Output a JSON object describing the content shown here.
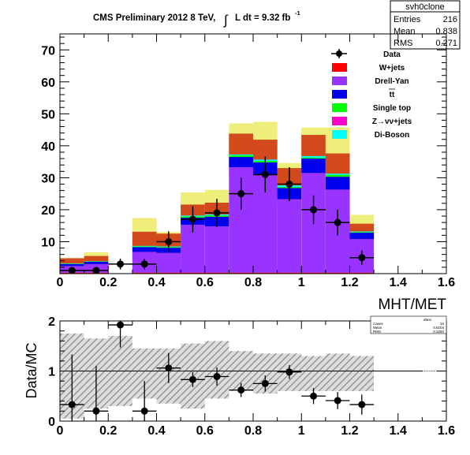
{
  "title_main": "CMS Preliminary 2012 8 TeV,",
  "title_lumi": "L dt = 9.32 fb",
  "title_lumi_exp": "-1",
  "title_integral": "∫",
  "stats": {
    "name": "svh0clone",
    "rows": [
      {
        "label": "Entries",
        "value": "216"
      },
      {
        "label": "Mean",
        "value": "0.838"
      },
      {
        "label": "RMS",
        "value": "0.271"
      }
    ]
  },
  "stats_small": {
    "name": "dtest",
    "rows": [
      {
        "label": "Cases",
        "value": "15"
      },
      {
        "label": "Mean",
        "value": "0.6104"
      },
      {
        "label": "RMS",
        "value": "0.3260"
      }
    ]
  },
  "colors": {
    "wjets": "#ff0000",
    "dy": "#9933ff",
    "ttbar": "#0000ee",
    "singletop": "#00ff00",
    "zvv": "#ff00cc",
    "diboson": "#00ffff",
    "unc_dark": "#d04418",
    "unc_light": "#eeee7a",
    "ratio_band": "#aaaaaa"
  },
  "chart_data": [
    {
      "type": "bar",
      "xlabel": "MHT/MET",
      "ylabel": "",
      "xlim": [
        0,
        1.6
      ],
      "ylim": [
        0,
        75
      ],
      "x_ticks": [
        "0",
        "0.2",
        "0.4",
        "0.6",
        "0.8",
        "1",
        "1.2",
        "1.4",
        "1.6"
      ],
      "y_ticks": [
        "10",
        "20",
        "30",
        "40",
        "50",
        "60",
        "70"
      ],
      "bin_edges": [
        0,
        0.1,
        0.2,
        0.3,
        0.4,
        0.5,
        0.6,
        0.7,
        0.8,
        0.9,
        1.0,
        1.1,
        1.2,
        1.3
      ],
      "stack": [
        {
          "name": "W+jets",
          "key": "wjets",
          "values": [
            0.3,
            0.3,
            0,
            0.3,
            0.3,
            0.3,
            0.3,
            0.3,
            0.3,
            0.3,
            0.3,
            0.3,
            0.3
          ]
        },
        {
          "name": "Drell-Yan",
          "key": "dy",
          "values": [
            2.1,
            2.7,
            0,
            6.5,
            6.2,
            15.0,
            14.5,
            33.0,
            30.5,
            23.0,
            31.2,
            26.0,
            10.5
          ]
        },
        {
          "name": "tt",
          "key": "ttbar",
          "values": [
            0.6,
            0.7,
            0,
            1.5,
            1.6,
            2.2,
            3.0,
            3.2,
            4.0,
            3.5,
            4.5,
            4.0,
            2.0
          ]
        },
        {
          "name": "Single top",
          "key": "singletop",
          "values": [
            0.1,
            0.1,
            0,
            0.2,
            0.2,
            0.4,
            0.4,
            0.5,
            0.5,
            0.3,
            0.3,
            0.6,
            0.2
          ]
        },
        {
          "name": "Z→νν+jets",
          "key": "zvv",
          "values": [
            0,
            0,
            0,
            0,
            0,
            0,
            0,
            0,
            0,
            0,
            0,
            0,
            0
          ]
        },
        {
          "name": "Di-Boson",
          "key": "diboson",
          "values": [
            0.1,
            0.1,
            0,
            0.2,
            0.2,
            0.3,
            0.3,
            0.3,
            0.4,
            0.5,
            0.5,
            0.4,
            0.2
          ]
        }
      ],
      "mc_total": [
        3.2,
        3.9,
        0,
        8.7,
        8.5,
        18.2,
        18.5,
        37.3,
        35.7,
        27.6,
        36.8,
        31.3,
        13.2
      ],
      "unc_inner": [
        1.6,
        1.6,
        0,
        4.4,
        4.0,
        3.4,
        3.7,
        6.5,
        6.2,
        5.4,
        6.6,
        6.3,
        2.4
      ],
      "unc_outer": [
        4.9,
        6.7,
        0,
        17.4,
        13.0,
        25.4,
        26.2,
        47.0,
        47.5,
        34.6,
        45.7,
        45.7,
        18.4
      ],
      "data": {
        "name": "Data",
        "x": [
          0.05,
          0.15,
          0.25,
          0.35,
          0.45,
          0.55,
          0.65,
          0.75,
          0.85,
          0.95,
          1.05,
          1.15,
          1.25
        ],
        "y": [
          1,
          1,
          3,
          3,
          10,
          17,
          19,
          25,
          31,
          28,
          20,
          16,
          5
        ],
        "err": [
          1,
          1,
          1.7,
          1.7,
          3.2,
          4.1,
          4.4,
          5.0,
          5.6,
          5.3,
          4.5,
          4.0,
          2.2
        ]
      },
      "legend_placement": "top-right",
      "legend_labels": [
        "Data",
        "W+jets",
        "Drell-Yan",
        "tt",
        "Single top",
        "Z→νν+jets",
        "Di-Boson"
      ]
    },
    {
      "type": "scatter",
      "ylabel": "Data/MC",
      "xlabel": "",
      "xlim": [
        0,
        1.6
      ],
      "ylim": [
        0,
        2
      ],
      "x_ticks": [
        "0",
        "0.2",
        "0.4",
        "0.6",
        "0.8",
        "1",
        "1.2",
        "1.4",
        "1.6"
      ],
      "y_ticks": [
        "0",
        "1",
        "2"
      ],
      "reference_line": 1,
      "band": {
        "bin_edges": [
          0,
          0.1,
          0.2,
          0.3,
          0.4,
          0.5,
          0.6,
          0.7,
          0.8,
          0.9,
          1.0,
          1.1,
          1.2,
          1.3
        ],
        "low": [
          0.05,
          0.25,
          0.3,
          0.45,
          0.35,
          0.25,
          0.45,
          0.6,
          0.55,
          0.6,
          0.6,
          0.6,
          0.6
        ],
        "high": [
          1.75,
          1.65,
          1.7,
          1.45,
          1.45,
          1.55,
          1.6,
          1.4,
          1.35,
          1.35,
          1.3,
          1.35,
          1.3
        ]
      },
      "points": {
        "x": [
          0.05,
          0.15,
          0.25,
          0.35,
          0.45,
          0.55,
          0.65,
          0.75,
          0.85,
          0.95,
          1.05,
          1.15,
          1.25
        ],
        "y": [
          0.33,
          0.2,
          1.92,
          0.2,
          1.06,
          0.83,
          0.89,
          0.62,
          0.75,
          0.98,
          0.5,
          0.41,
          0.33
        ],
        "err": [
          1.0,
          0.9,
          0.45,
          0.6,
          0.3,
          0.15,
          0.18,
          0.14,
          0.16,
          0.14,
          0.16,
          0.17,
          0.2
        ]
      }
    }
  ]
}
